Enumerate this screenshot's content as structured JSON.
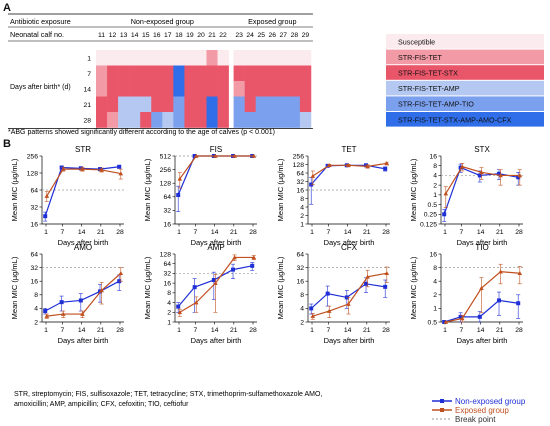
{
  "figure": {
    "panel_a_label": "A",
    "panel_b_label": "B",
    "footnote": "*ABG patterns showed significantly different according to the age of calves (p < 0.001)",
    "abbreviations_line1": "STR, streptomycin; FIS, sulfisoxazole; TET, tetracycline; STX, trimethoprim-sulfamethoxazole AMO,",
    "abbreviations_line2": "amoxicillin; AMP, ampicillin; CFX, cefoxitin; TIO, ceftiofur"
  },
  "colors": {
    "susceptible": "#fbeaee",
    "STR-FIS-TET": "#f29aa6",
    "STR-FIS-TET-STX": "#e9566a",
    "STR-FIS-TET-AMP": "#b4c8f2",
    "STR-FIS-TET-AMP-TIO": "#7ba0ee",
    "STR-FIS-TET-STX-AMP-AMO-CFX": "#2f6ee8",
    "non_exposed": "#1f2fd6",
    "exposed": "#c0501f",
    "breakpoint": "#999999"
  },
  "chart_data": [
    {
      "type": "heatmap",
      "header_col1": "Antibiotic exposure",
      "header_col2": "Neonatal calf no.",
      "row_label": "Days after birth* (d)",
      "groups": [
        {
          "name": "Non-exposed group",
          "calves": [
            "11",
            "12",
            "13",
            "14",
            "15",
            "16",
            "17",
            "18",
            "19",
            "20",
            "21",
            "22"
          ]
        },
        {
          "name": "Exposed group",
          "calves": [
            "23",
            "24",
            "25",
            "26",
            "27",
            "28",
            "29"
          ]
        }
      ],
      "days": [
        "1",
        "7",
        "14",
        "21",
        "28"
      ],
      "legend": [
        "Susceptible",
        "STR-FIS-TET",
        "STR-FIS-TET-STX",
        "STR-FIS-TET-AMP",
        "STR-FIS-TET-AMP-TIO",
        "STR-FIS-TET-STX-AMP-AMO-CFX"
      ],
      "cells": [
        [
          0,
          0,
          0,
          0,
          0,
          0,
          0,
          0,
          0,
          0,
          1,
          0,
          0,
          0,
          0,
          0,
          0,
          0,
          0
        ],
        [
          1,
          2,
          2,
          2,
          2,
          2,
          2,
          5,
          2,
          2,
          2,
          2,
          2,
          2,
          2,
          2,
          2,
          2,
          2
        ],
        [
          1,
          2,
          2,
          2,
          2,
          2,
          2,
          5,
          2,
          2,
          2,
          2,
          1,
          2,
          2,
          2,
          2,
          2,
          2
        ],
        [
          2,
          2,
          3,
          3,
          3,
          2,
          2,
          4,
          2,
          2,
          5,
          2,
          4,
          2,
          4,
          4,
          4,
          4,
          2
        ],
        [
          2,
          1,
          3,
          3,
          2,
          4,
          3,
          4,
          2,
          2,
          5,
          2,
          4,
          4,
          4,
          4,
          4,
          4,
          3
        ]
      ]
    },
    {
      "type": "line",
      "title": "STR",
      "ylabel": "Mean MIC (µg/mL)",
      "xlabel": "Days after birth",
      "x": [
        1,
        7,
        14,
        21,
        28
      ],
      "yscale": "log2",
      "ylim": [
        16,
        256
      ],
      "yticks": [
        "16",
        "32",
        "64",
        "128",
        "256"
      ],
      "ytick_values": [
        16,
        32,
        64,
        128,
        256
      ],
      "breakpoint": 64,
      "series": [
        {
          "name": "Non-exposed group",
          "values": [
            22,
            160,
            155,
            150,
            165
          ],
          "err": [
            4,
            10,
            10,
            10,
            10
          ]
        },
        {
          "name": "Exposed group",
          "values": [
            50,
            150,
            150,
            145,
            125
          ],
          "err": [
            10,
            12,
            12,
            12,
            25
          ]
        }
      ]
    },
    {
      "type": "line",
      "title": "FIS",
      "ylabel": "Mean MIC (µg/mL)",
      "xlabel": "Days after birth",
      "x": [
        1,
        7,
        14,
        21,
        28
      ],
      "yscale": "log2",
      "ylim": [
        16,
        512
      ],
      "yticks": [
        "16",
        "32",
        "64",
        "128",
        "256",
        "512"
      ],
      "ytick_values": [
        16,
        32,
        64,
        128,
        256,
        512
      ],
      "breakpoint": 512,
      "series": [
        {
          "name": "Non-exposed group",
          "values": [
            70,
            512,
            512,
            512,
            512
          ],
          "err": [
            40,
            0,
            0,
            0,
            0
          ]
        },
        {
          "name": "Exposed group",
          "values": [
            160,
            512,
            512,
            512,
            512
          ],
          "err": [
            60,
            0,
            0,
            0,
            0
          ]
        }
      ]
    },
    {
      "type": "line",
      "title": "TET",
      "ylabel": "Mean MIC (µg/mL)",
      "xlabel": "Days after birth",
      "x": [
        1,
        7,
        14,
        21,
        28
      ],
      "yscale": "log2",
      "ylim": [
        1,
        256
      ],
      "yticks": [
        "1",
        "2",
        "4",
        "8",
        "16",
        "32",
        "64",
        "128",
        "256"
      ],
      "ytick_values": [
        1,
        2,
        4,
        8,
        16,
        32,
        64,
        128,
        256
      ],
      "breakpoint": 16,
      "series": [
        {
          "name": "Non-exposed group",
          "values": [
            25,
            115,
            120,
            120,
            90
          ],
          "err": [
            20,
            10,
            10,
            10,
            15
          ]
        },
        {
          "name": "Exposed group",
          "values": [
            50,
            120,
            120,
            110,
            140
          ],
          "err": [
            25,
            10,
            10,
            15,
            15
          ]
        }
      ]
    },
    {
      "type": "line",
      "title": "STX",
      "ylabel": "Mean MIC (µg/mL)",
      "xlabel": "Days after birth",
      "x": [
        1,
        7,
        14,
        21,
        28
      ],
      "yscale": "log2",
      "ylim": [
        0.125,
        16
      ],
      "yticks": [
        "0.125",
        "0.25",
        "0.5",
        "1",
        "2",
        "4",
        "8",
        "16"
      ],
      "ytick_values": [
        0.125,
        0.25,
        0.5,
        1,
        2,
        4,
        8,
        16
      ],
      "breakpoint": 4,
      "series": [
        {
          "name": "Non-exposed group",
          "values": [
            0.25,
            7,
            4,
            4.5,
            3.5
          ],
          "err": [
            0.1,
            2,
            1.5,
            1.5,
            1.5
          ]
        },
        {
          "name": "Exposed group",
          "values": [
            1.1,
            7.5,
            5,
            4,
            4
          ],
          "err": [
            0.7,
            2,
            2,
            2,
            2
          ]
        }
      ]
    },
    {
      "type": "line",
      "title": "AMO",
      "ylabel": "Mean MIC (µg/mL)",
      "xlabel": "Days after birth",
      "x": [
        1,
        7,
        14,
        21,
        28
      ],
      "yscale": "log2",
      "ylim": [
        2,
        64
      ],
      "yticks": [
        "2",
        "4",
        "8",
        "16",
        "32",
        "64"
      ],
      "ytick_values": [
        2,
        4,
        8,
        16,
        32,
        64
      ],
      "breakpoint": 32,
      "series": [
        {
          "name": "Non-exposed group",
          "values": [
            3.5,
            5.5,
            6,
            9.5,
            16
          ],
          "err": [
            0.5,
            2,
            2.5,
            4,
            6
          ]
        },
        {
          "name": "Exposed group",
          "values": [
            2.7,
            3,
            3,
            10,
            24
          ],
          "err": [
            0.3,
            0.5,
            0.5,
            5,
            8
          ]
        }
      ]
    },
    {
      "type": "line",
      "title": "AMP",
      "ylabel": "Mean MIC (µg/mL)",
      "xlabel": "Days after birth",
      "x": [
        1,
        7,
        14,
        21,
        28
      ],
      "yscale": "log2",
      "ylim": [
        1,
        128
      ],
      "yticks": [
        "1",
        "2",
        "4",
        "8",
        "16",
        "32",
        "64",
        "128"
      ],
      "ytick_values": [
        1,
        2,
        4,
        8,
        16,
        32,
        64,
        128
      ],
      "breakpoint": 32,
      "series": [
        {
          "name": "Non-exposed group",
          "values": [
            3,
            12,
            20,
            42,
            55
          ],
          "err": [
            1,
            10,
            15,
            20,
            15
          ]
        },
        {
          "name": "Exposed group",
          "values": [
            2,
            4,
            16,
            100,
            100
          ],
          "err": [
            0.5,
            2,
            14,
            20,
            15
          ]
        }
      ]
    },
    {
      "type": "line",
      "title": "CFX",
      "ylabel": "Mean MIC (µg/mL)",
      "xlabel": "Days after birth",
      "x": [
        1,
        7,
        14,
        21,
        28
      ],
      "yscale": "log2",
      "ylim": [
        2,
        64
      ],
      "yticks": [
        "2",
        "4",
        "8",
        "16",
        "32",
        "64"
      ],
      "ytick_values": [
        2,
        4,
        8,
        16,
        32,
        64
      ],
      "breakpoint": 32,
      "series": [
        {
          "name": "Non-exposed group",
          "values": [
            4,
            8.5,
            7,
            14,
            12
          ],
          "err": [
            1,
            4,
            3,
            5,
            5
          ]
        },
        {
          "name": "Exposed group",
          "values": [
            2.7,
            3.5,
            5,
            20,
            24
          ],
          "err": [
            0.4,
            1,
            2,
            8,
            9
          ]
        }
      ]
    },
    {
      "type": "line",
      "title": "TIO",
      "ylabel": "Mean MIC (µg/mL)",
      "xlabel": "Days after birth",
      "x": [
        1,
        7,
        14,
        21,
        28
      ],
      "yscale": "log2",
      "ylim": [
        0.5,
        16
      ],
      "yticks": [
        "0.5",
        "1",
        "2",
        "4",
        "8",
        "16"
      ],
      "ytick_values": [
        0.5,
        1,
        2,
        4,
        8,
        16
      ],
      "breakpoint": 8,
      "series": [
        {
          "name": "Non-exposed group",
          "values": [
            0.5,
            0.65,
            0.65,
            1.5,
            1.3
          ],
          "err": [
            0,
            0.15,
            0.2,
            0.8,
            0.7
          ]
        },
        {
          "name": "Exposed group",
          "values": [
            0.5,
            0.6,
            2.8,
            6.5,
            6
          ],
          "err": [
            0,
            0.1,
            2,
            3,
            2.5
          ]
        }
      ]
    }
  ],
  "legend": {
    "non_exposed": "Non-exposed group",
    "exposed": "Exposed group",
    "breakpoint": "Break point"
  }
}
